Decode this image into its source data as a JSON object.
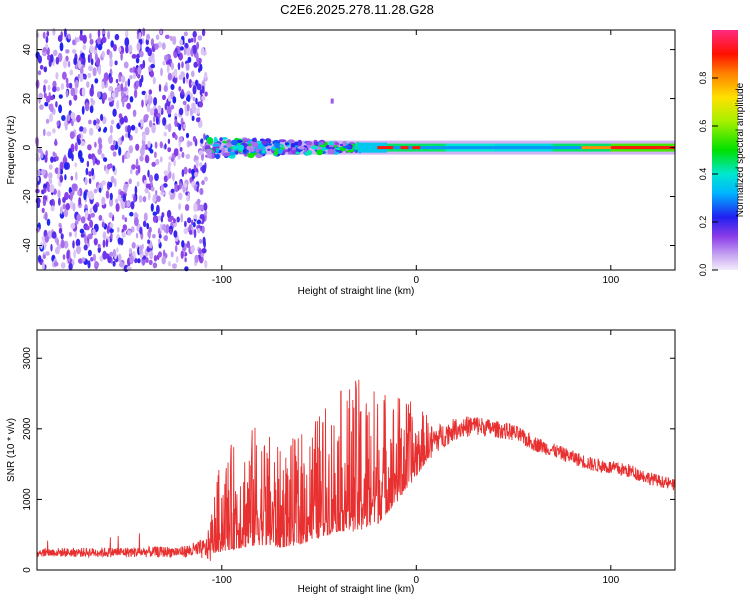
{
  "title": "C2E6.2025.278.11.28.G28",
  "chart_data": [
    {
      "type": "heatmap",
      "title": "C2E6.2025.278.11.28.G28",
      "xlabel": "Height of straight line (km)",
      "ylabel": "Frequency (Hz)",
      "xlim": [
        -195,
        133
      ],
      "ylim": [
        -50,
        48
      ],
      "xticks": [
        -100,
        0,
        100
      ],
      "xtick_labels": [
        "-100",
        "0",
        "100"
      ],
      "yticks": [
        -40,
        -20,
        0,
        20,
        40
      ],
      "ytick_labels": [
        "-40",
        "-20",
        "0",
        "20",
        "40"
      ],
      "noise_region_x": [
        -195,
        -108
      ],
      "signal_band_center_hz": 0,
      "colorbar": {
        "label": "Normalized spectral amplitude",
        "range": [
          0.0,
          1.0
        ],
        "ticks": [
          0.0,
          0.2,
          0.4,
          0.6,
          0.8
        ],
        "tick_labels": [
          "0.0",
          "0.2",
          "0.4",
          "0.6",
          "0.8"
        ]
      }
    },
    {
      "type": "line",
      "xlabel": "Height of straight line (km)",
      "ylabel": "SNR (10 * v/v)",
      "xlim": [
        -195,
        133
      ],
      "ylim": [
        0,
        3400
      ],
      "xticks": [
        -100,
        0,
        100
      ],
      "xtick_labels": [
        "-100",
        "0",
        "100"
      ],
      "yticks": [
        0,
        1000,
        2000,
        3000
      ],
      "ytick_labels": [
        "0",
        "1000",
        "2000",
        "3000"
      ],
      "series": [
        {
          "name": "SNR",
          "color": "#e83030",
          "envelope_x": [
            -195,
            -160,
            -120,
            -108,
            -100,
            -90,
            -80,
            -70,
            -60,
            -50,
            -40,
            -30,
            -20,
            -10,
            0,
            10,
            20,
            30,
            40,
            50,
            60,
            70,
            80,
            90,
            100,
            110,
            120,
            133
          ],
          "envelope_mean": [
            250,
            250,
            260,
            300,
            650,
            750,
            850,
            700,
            800,
            950,
            1100,
            1150,
            1200,
            1400,
            1600,
            1850,
            2000,
            2050,
            2000,
            1950,
            1800,
            1700,
            1600,
            1500,
            1450,
            1400,
            1300,
            1200
          ],
          "envelope_spread": [
            60,
            70,
            80,
            150,
            700,
            800,
            900,
            700,
            800,
            900,
            1000,
            1100,
            1000,
            800,
            500,
            200,
            150,
            150,
            120,
            120,
            110,
            100,
            100,
            100,
            100,
            100,
            90,
            80
          ]
        }
      ]
    }
  ]
}
